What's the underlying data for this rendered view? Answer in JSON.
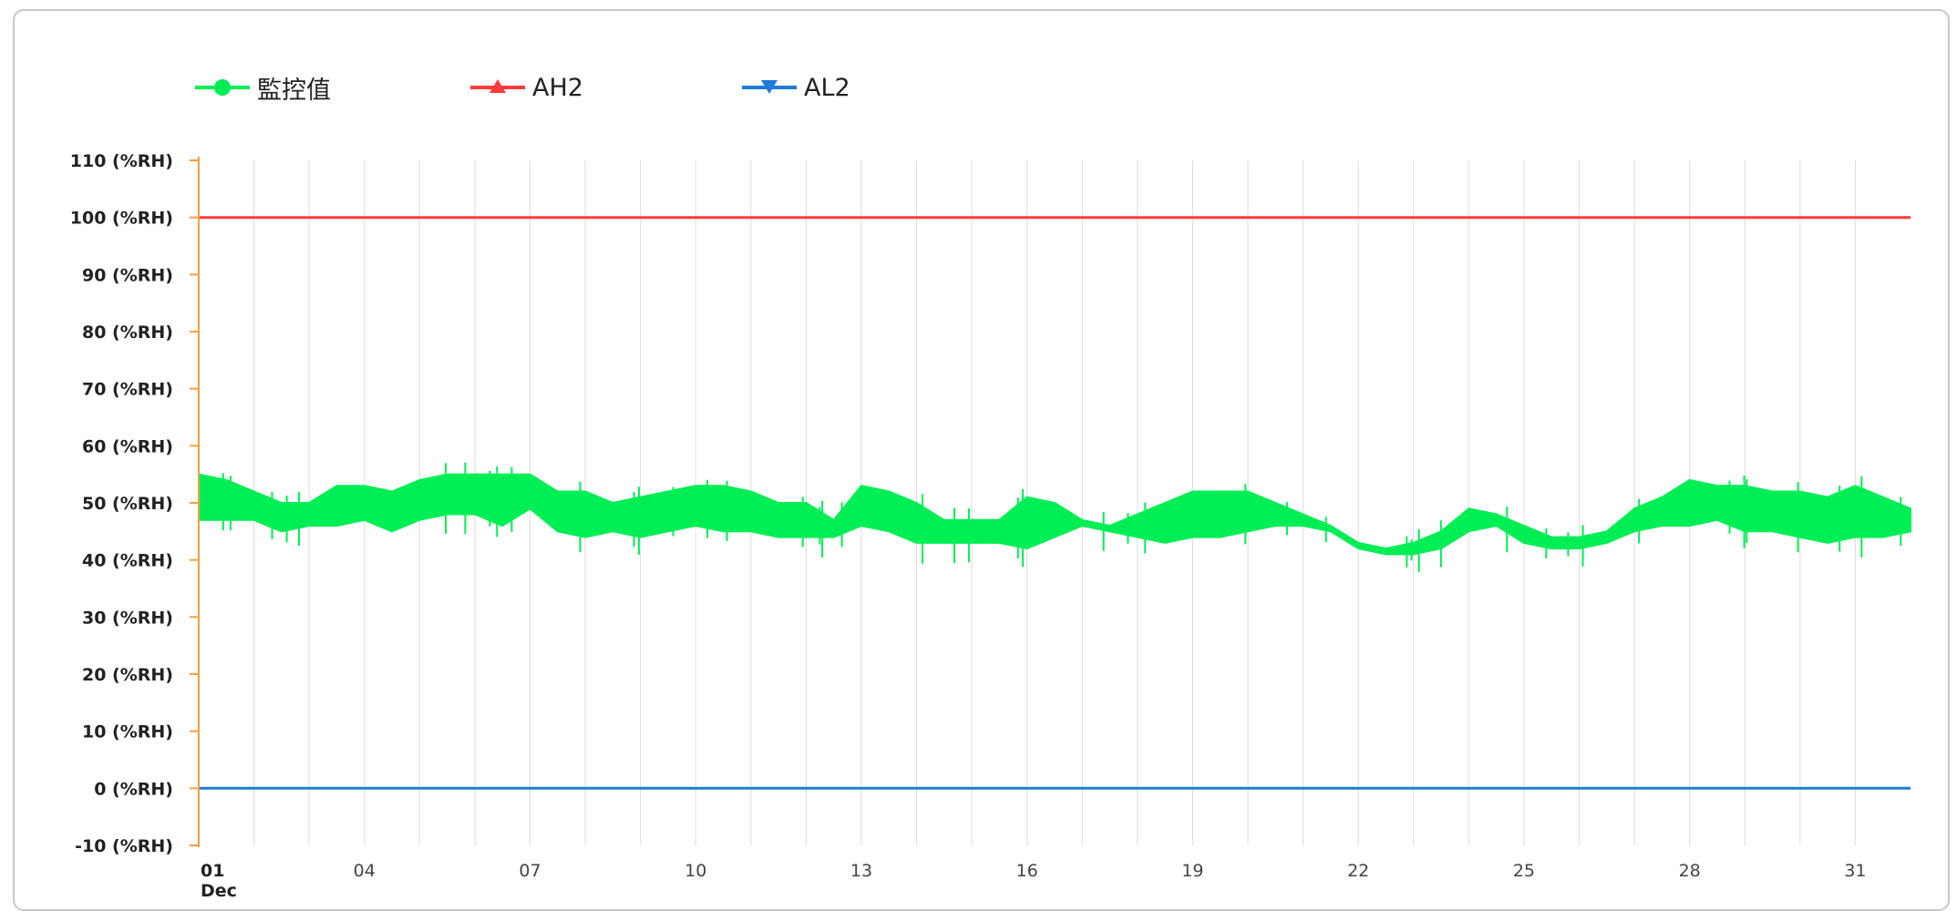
{
  "legend": {
    "items": [
      {
        "label": "監控值",
        "color": "#00ee55",
        "marker": "circle"
      },
      {
        "label": "AH2",
        "color": "#ff3b3b",
        "marker": "triangle-up"
      },
      {
        "label": "AL2",
        "color": "#1e7bd9",
        "marker": "triangle-down"
      }
    ]
  },
  "chart_data": {
    "type": "line",
    "title": "",
    "xlabel": "",
    "ylabel": "",
    "y_unit": "(%RH)",
    "ylim": [
      -10,
      110
    ],
    "yticks": [
      -10,
      0,
      10,
      20,
      30,
      40,
      50,
      60,
      70,
      80,
      90,
      100,
      110
    ],
    "ytick_labels": [
      "-10 (%RH)",
      "0 (%RH)",
      "10 (%RH)",
      "20 (%RH)",
      "30 (%RH)",
      "40 (%RH)",
      "50 (%RH)",
      "60 (%RH)",
      "70 (%RH)",
      "80 (%RH)",
      "90 (%RH)",
      "100 (%RH)",
      "110 (%RH)"
    ],
    "xlim_days": [
      1,
      32
    ],
    "xticks": [
      1,
      4,
      7,
      10,
      13,
      16,
      19,
      22,
      25,
      28,
      31
    ],
    "xtick_labels": [
      "01",
      "04",
      "07",
      "10",
      "13",
      "16",
      "19",
      "22",
      "25",
      "28",
      "31"
    ],
    "x_month_label": "Dec",
    "grid": {
      "vertical_daily": true,
      "horizontal": false
    },
    "axis_color": "#f0a040",
    "legend_position": "top-left",
    "series": [
      {
        "name": "監控值",
        "color": "#00ee55",
        "band": true,
        "x": [
          1,
          1.5,
          2,
          2.5,
          3,
          3.5,
          4,
          4.5,
          5,
          5.5,
          6,
          6.5,
          7,
          7.5,
          8,
          8.5,
          9,
          9.5,
          10,
          10.5,
          11,
          11.5,
          12,
          12.5,
          13,
          13.5,
          14,
          14.5,
          15,
          15.5,
          16,
          16.5,
          17,
          17.5,
          18,
          18.5,
          19,
          19.5,
          20,
          20.5,
          21,
          21.5,
          22,
          22.5,
          23,
          23.5,
          24,
          24.5,
          25,
          25.5,
          26,
          26.5,
          27,
          27.5,
          28,
          28.5,
          29,
          29.5,
          30,
          30.5,
          31,
          31.5,
          32
        ],
        "low": [
          47,
          47,
          47,
          45,
          46,
          46,
          47,
          45,
          47,
          48,
          48,
          46,
          49,
          45,
          44,
          45,
          44,
          45,
          46,
          45,
          45,
          44,
          44,
          44,
          46,
          45,
          43,
          43,
          43,
          43,
          42,
          44,
          46,
          45,
          44,
          43,
          44,
          44,
          45,
          46,
          46,
          45,
          42,
          41,
          41,
          42,
          45,
          46,
          43,
          42,
          42,
          43,
          45,
          46,
          46,
          47,
          45,
          45,
          44,
          43,
          44,
          44,
          45
        ],
        "high": [
          55,
          54,
          52,
          50,
          50,
          53,
          53,
          52,
          54,
          55,
          55,
          55,
          55,
          52,
          52,
          50,
          51,
          52,
          53,
          53,
          52,
          50,
          50,
          47,
          53,
          52,
          50,
          47,
          47,
          47,
          51,
          50,
          47,
          46,
          48,
          50,
          52,
          52,
          52,
          50,
          48,
          46,
          43,
          42,
          43,
          45,
          49,
          48,
          46,
          44,
          44,
          45,
          49,
          51,
          54,
          53,
          53,
          52,
          52,
          51,
          53,
          51,
          49
        ]
      },
      {
        "name": "AH2",
        "color": "#ff3b3b",
        "x": [
          1,
          32
        ],
        "y": [
          100,
          100
        ]
      },
      {
        "name": "AL2",
        "color": "#1e7bd9",
        "x": [
          1,
          32
        ],
        "y": [
          0,
          0
        ]
      }
    ]
  }
}
